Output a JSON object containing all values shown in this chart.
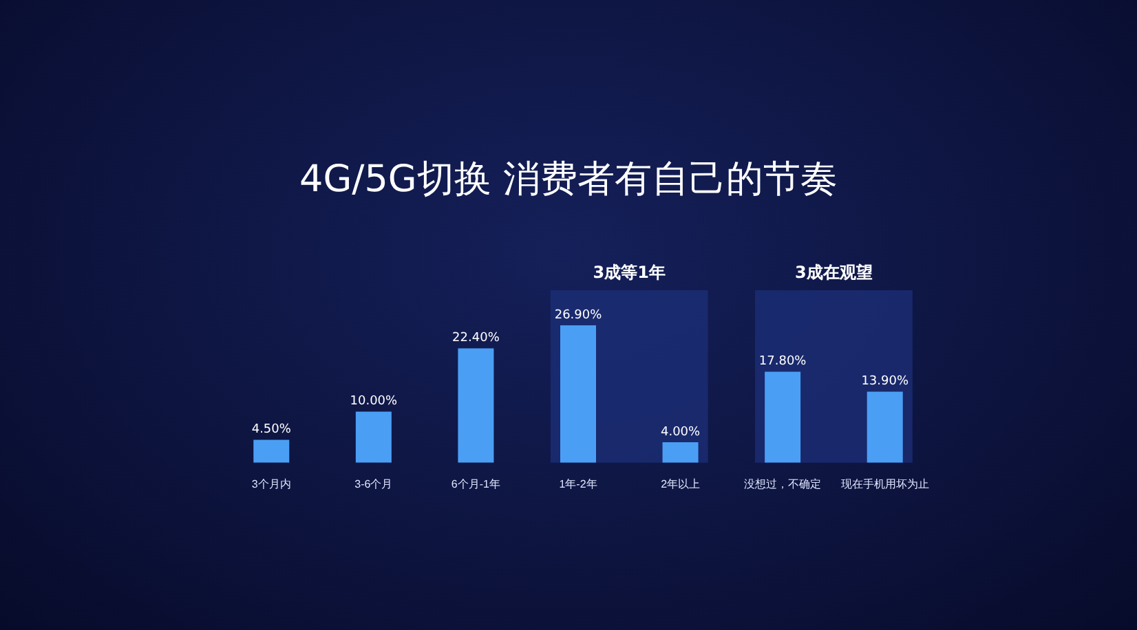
{
  "chart_data": {
    "type": "bar",
    "title": "4G/5G切换 消费者有自己的节奏",
    "categories": [
      "3个月内",
      "3-6个月",
      "6个月-1年",
      "1年-2年",
      "2年以上",
      "没想过，不确定",
      "现在手机用坏为止"
    ],
    "values": [
      4.5,
      10.0,
      22.4,
      26.9,
      4.0,
      17.8,
      13.9
    ],
    "value_labels": [
      "4.50%",
      "10.00%",
      "22.40%",
      "26.90%",
      "4.00%",
      "17.80%",
      "13.90%"
    ],
    "color": "#4a9ff5",
    "tick_labels": "x",
    "grid": false,
    "legend": false,
    "bands": [
      {
        "axis": "x",
        "from": "1年-2年",
        "to": "2年以上",
        "label": "3成等1年",
        "color": "#1c2f78"
      },
      {
        "axis": "x",
        "from": "没想过，不确定",
        "to": "现在手机用坏为止",
        "label": "3成在观望",
        "color": "#1c2f78"
      }
    ]
  }
}
